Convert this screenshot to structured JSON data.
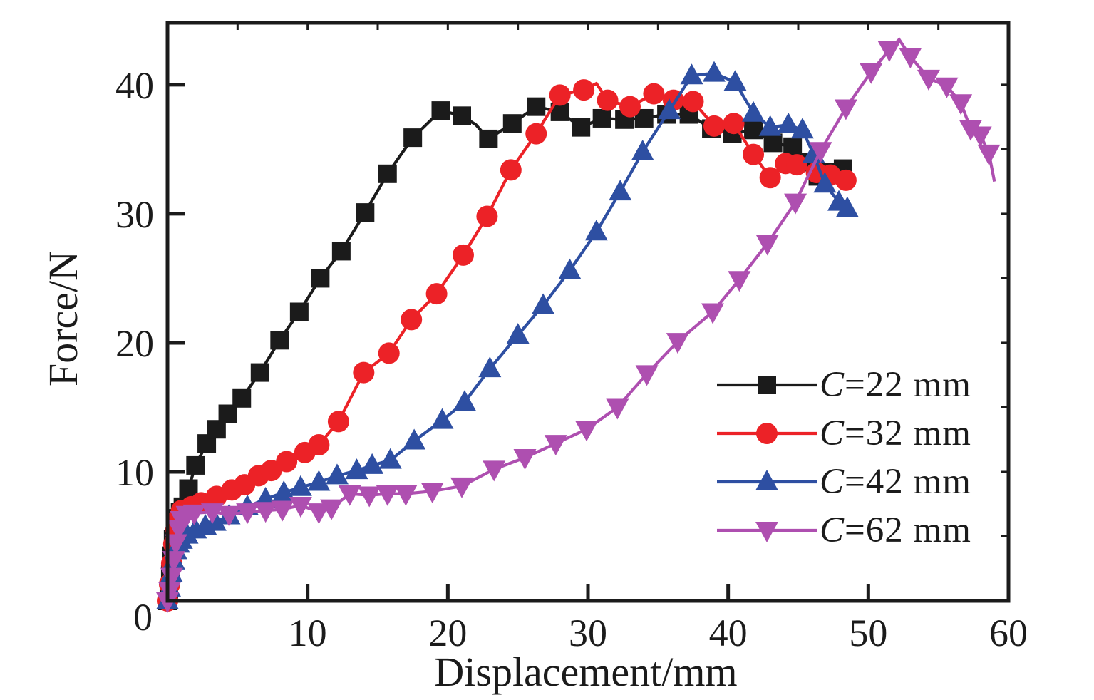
{
  "figure": {
    "background": "#ffffff",
    "axis_color": "#1b1b1b"
  },
  "chart_data": {
    "type": "line",
    "title": "",
    "xlabel": "Displacement/mm",
    "ylabel": "Force/N",
    "xlim": [
      0,
      60
    ],
    "ylim": [
      0,
      44.8
    ],
    "grid": false,
    "legend_position": "inside lower right",
    "x_tick_values": [
      10,
      20,
      30,
      40,
      50,
      60
    ],
    "x_tick_labels": [
      "10",
      "20",
      "30",
      "40",
      "50",
      "60"
    ],
    "y_tick_values": [
      10,
      20,
      30,
      40
    ],
    "y_tick_labels": [
      "10",
      "20",
      "30",
      "40"
    ],
    "origin_label": "0",
    "minor_tick_step": 5,
    "series": [
      {
        "name": "C=22 mm",
        "legend_prefix": "C",
        "legend_rest": "=22 mm",
        "color": "#1b1b1b",
        "marker": "square",
        "points": [
          [
            0,
            0
          ],
          [
            0.1,
            0.9
          ],
          [
            0.2,
            2.1
          ],
          [
            0.3,
            3.5
          ],
          [
            0.4,
            4.8
          ],
          [
            0.55,
            5.7
          ],
          [
            0.7,
            6.4
          ],
          [
            0.9,
            6.9
          ],
          [
            1.1,
            7.3
          ],
          [
            1.5,
            8.7
          ],
          [
            2.0,
            10.5
          ],
          [
            2.8,
            12.2
          ],
          [
            3.5,
            13.3
          ],
          [
            4.3,
            14.5
          ],
          [
            5.3,
            15.7
          ],
          [
            6.6,
            17.7
          ],
          [
            8.0,
            20.2
          ],
          [
            9.4,
            22.4
          ],
          [
            10.9,
            25.0
          ],
          [
            12.4,
            27.1
          ],
          [
            14.1,
            30.1
          ],
          [
            15.7,
            33.1
          ],
          [
            17.5,
            35.9
          ],
          [
            19.5,
            38.0
          ],
          [
            21.0,
            37.6
          ],
          [
            22.0,
            36.9,
            0
          ],
          [
            22.9,
            35.8
          ],
          [
            24.6,
            37.0
          ],
          [
            26.3,
            38.3
          ],
          [
            28.0,
            37.9
          ],
          [
            29.5,
            36.7
          ],
          [
            31.0,
            37.4
          ],
          [
            32.6,
            37.3
          ],
          [
            34.0,
            37.4
          ],
          [
            35.6,
            37.7
          ],
          [
            37.2,
            37.7
          ],
          [
            38.8,
            36.6
          ],
          [
            40.3,
            36.2
          ],
          [
            41.8,
            36.5
          ],
          [
            43.2,
            35.5
          ],
          [
            44.6,
            35.2
          ],
          [
            45.6,
            34.0
          ],
          [
            46.4,
            32.9
          ],
          [
            47.3,
            33.2
          ],
          [
            48.2,
            33.5
          ]
        ]
      },
      {
        "name": "C=32 mm",
        "legend_prefix": "C",
        "legend_rest": "=32 mm",
        "color": "#ec2227",
        "marker": "circle",
        "points": [
          [
            0,
            0
          ],
          [
            0.15,
            1.3
          ],
          [
            0.3,
            2.9
          ],
          [
            0.45,
            4.4
          ],
          [
            0.6,
            5.5
          ],
          [
            0.8,
            6.4
          ],
          [
            1.0,
            7.0
          ],
          [
            1.7,
            7.3
          ],
          [
            2.4,
            7.6
          ],
          [
            3.5,
            8.1
          ],
          [
            4.6,
            8.6
          ],
          [
            5.5,
            9.0
          ],
          [
            6.5,
            9.7
          ],
          [
            7.4,
            10.1
          ],
          [
            8.5,
            10.8
          ],
          [
            9.8,
            11.5
          ],
          [
            10.8,
            12.1
          ],
          [
            12.2,
            13.9
          ],
          [
            14.0,
            17.7
          ],
          [
            15.8,
            19.2
          ],
          [
            17.4,
            21.8
          ],
          [
            19.2,
            23.8
          ],
          [
            21.1,
            26.8
          ],
          [
            22.8,
            29.8
          ],
          [
            24.5,
            33.4
          ],
          [
            26.3,
            36.2
          ],
          [
            28.0,
            39.2
          ],
          [
            29.7,
            39.6
          ],
          [
            30.6,
            40.1,
            0
          ],
          [
            31.4,
            38.8
          ],
          [
            33.0,
            38.3
          ],
          [
            34.7,
            39.3
          ],
          [
            36.1,
            38.8
          ],
          [
            37.5,
            38.7
          ],
          [
            39.0,
            36.8
          ],
          [
            40.4,
            37.0
          ],
          [
            41.8,
            34.6
          ],
          [
            43.0,
            32.8
          ],
          [
            44.1,
            33.9
          ],
          [
            44.9,
            33.8
          ],
          [
            46.3,
            33.2
          ],
          [
            47.3,
            33.0
          ],
          [
            48.4,
            32.6
          ]
        ]
      },
      {
        "name": "C=42 mm",
        "legend_prefix": "C",
        "legend_rest": "=42 mm",
        "color": "#2e4fa2",
        "marker": "triangle-up",
        "points": [
          [
            0,
            0
          ],
          [
            0.15,
            1.0
          ],
          [
            0.3,
            2.1
          ],
          [
            0.45,
            3.1
          ],
          [
            0.6,
            3.9
          ],
          [
            0.8,
            4.4
          ],
          [
            1.0,
            4.7
          ],
          [
            1.4,
            5.1
          ],
          [
            2.0,
            5.5
          ],
          [
            2.7,
            5.8
          ],
          [
            3.4,
            6.1
          ],
          [
            4.4,
            6.6
          ],
          [
            5.7,
            7.3
          ],
          [
            7.0,
            7.9
          ],
          [
            8.3,
            8.4
          ],
          [
            9.5,
            8.8
          ],
          [
            10.8,
            9.2
          ],
          [
            12.1,
            9.7
          ],
          [
            13.5,
            10.1
          ],
          [
            14.6,
            10.5
          ],
          [
            15.9,
            10.9
          ],
          [
            17.6,
            12.4
          ],
          [
            19.6,
            14.0
          ],
          [
            21.2,
            15.4
          ],
          [
            23.0,
            18.0
          ],
          [
            25.0,
            20.6
          ],
          [
            26.8,
            22.9
          ],
          [
            28.7,
            25.6
          ],
          [
            30.6,
            28.6
          ],
          [
            32.3,
            31.7
          ],
          [
            33.9,
            34.8
          ],
          [
            35.8,
            38.0
          ],
          [
            37.4,
            40.7
          ],
          [
            39.0,
            40.9
          ],
          [
            40.5,
            40.2
          ],
          [
            41.8,
            37.8
          ],
          [
            43.0,
            36.7
          ],
          [
            44.3,
            36.9
          ],
          [
            45.3,
            36.5
          ],
          [
            46.1,
            34.6
          ],
          [
            46.9,
            32.3
          ],
          [
            47.9,
            30.9
          ],
          [
            48.5,
            30.4
          ]
        ]
      },
      {
        "name": "C=62 mm",
        "legend_prefix": "C",
        "legend_rest": "=62 mm",
        "color": "#ae4fb0",
        "marker": "triangle-down",
        "points": [
          [
            0,
            0
          ],
          [
            0.15,
            0.8
          ],
          [
            0.3,
            1.9
          ],
          [
            0.45,
            3.2
          ],
          [
            0.6,
            4.5
          ],
          [
            0.8,
            5.6
          ],
          [
            1.0,
            6.3
          ],
          [
            1.4,
            6.7
          ],
          [
            1.9,
            6.8
          ],
          [
            3.2,
            6.9
          ],
          [
            4.4,
            6.7
          ],
          [
            5.7,
            6.9
          ],
          [
            7.0,
            7.0
          ],
          [
            8.2,
            7.1
          ],
          [
            9.5,
            7.4
          ],
          [
            10.8,
            6.9
          ],
          [
            11.7,
            7.2
          ],
          [
            13.0,
            8.3
          ],
          [
            14.4,
            8.2
          ],
          [
            15.7,
            8.3
          ],
          [
            17.0,
            8.3
          ],
          [
            18.9,
            8.5
          ],
          [
            21.0,
            8.9
          ],
          [
            23.3,
            10.2
          ],
          [
            25.5,
            11.1
          ],
          [
            27.7,
            12.2
          ],
          [
            29.9,
            13.3
          ],
          [
            32.1,
            15.0
          ],
          [
            34.2,
            17.6
          ],
          [
            36.4,
            20.1
          ],
          [
            38.9,
            22.4
          ],
          [
            40.8,
            24.9
          ],
          [
            42.8,
            27.7
          ],
          [
            44.8,
            30.9
          ],
          [
            46.6,
            34.9
          ],
          [
            48.4,
            38.2
          ],
          [
            50.2,
            41.0
          ],
          [
            51.5,
            42.7
          ],
          [
            52.2,
            43.5,
            0
          ],
          [
            53.0,
            42.2
          ],
          [
            54.3,
            40.5
          ],
          [
            55.6,
            39.9
          ],
          [
            56.6,
            38.6
          ],
          [
            57.3,
            36.6
          ],
          [
            58.0,
            36.1
          ],
          [
            58.6,
            34.7
          ],
          [
            59.0,
            32.5,
            0
          ]
        ]
      }
    ]
  }
}
